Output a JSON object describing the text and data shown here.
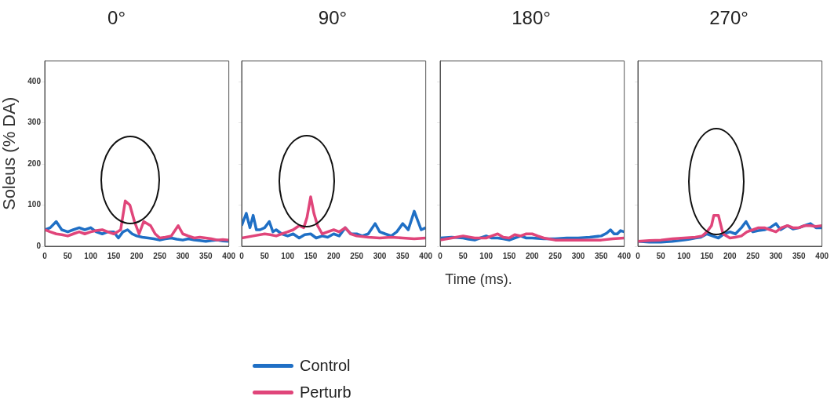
{
  "chart_data": [
    {
      "type": "line",
      "title": "0°",
      "ylabel": "Soleus (% DA)",
      "xlim": [
        0,
        400
      ],
      "xticks": [
        0,
        50,
        100,
        150,
        200,
        250,
        300,
        350,
        400
      ],
      "ylim": [
        0,
        450
      ],
      "yticks": [
        0,
        100,
        200,
        300,
        400
      ],
      "grid": false,
      "legend": "bottom",
      "marker": "none",
      "series": [
        {
          "name": "Control",
          "color": "#1f6fc5",
          "x": [
            0,
            12,
            25,
            37,
            50,
            62,
            75,
            87,
            100,
            112,
            125,
            137,
            150,
            160,
            170,
            180,
            190,
            200,
            212,
            225,
            237,
            250,
            262,
            275,
            287,
            300,
            312,
            325,
            337,
            350,
            362,
            375,
            387,
            400
          ],
          "values": [
            40,
            45,
            60,
            40,
            35,
            40,
            45,
            40,
            45,
            35,
            30,
            35,
            35,
            20,
            35,
            40,
            30,
            25,
            22,
            20,
            18,
            15,
            18,
            20,
            17,
            15,
            18,
            15,
            14,
            12,
            14,
            15,
            13,
            12
          ]
        },
        {
          "name": "Perturb",
          "color": "#e0457a",
          "x": [
            0,
            12,
            25,
            37,
            50,
            62,
            75,
            87,
            100,
            112,
            125,
            137,
            150,
            158,
            165,
            175,
            185,
            195,
            205,
            215,
            230,
            240,
            250,
            262,
            275,
            290,
            300,
            312,
            325,
            337,
            350,
            362,
            375,
            387,
            400
          ],
          "values": [
            40,
            35,
            30,
            28,
            25,
            30,
            35,
            30,
            35,
            38,
            40,
            35,
            30,
            35,
            40,
            110,
            100,
            60,
            30,
            60,
            50,
            30,
            20,
            22,
            25,
            50,
            30,
            25,
            20,
            22,
            20,
            18,
            15,
            16,
            15
          ]
        }
      ]
    },
    {
      "type": "line",
      "title": "90°",
      "xlim": [
        0,
        400
      ],
      "xticks": [
        0,
        50,
        100,
        150,
        200,
        250,
        300,
        350,
        400
      ],
      "ylim": [
        0,
        450
      ],
      "yticks": [
        0,
        100,
        200,
        300,
        400
      ],
      "grid": false,
      "tick_labels": "x",
      "marker": "none",
      "series": [
        {
          "color": "#1f6fc5",
          "x": [
            0,
            10,
            18,
            25,
            32,
            40,
            50,
            60,
            68,
            75,
            87,
            100,
            112,
            125,
            137,
            150,
            162,
            175,
            187,
            200,
            212,
            225,
            237,
            250,
            262,
            275,
            290,
            300,
            312,
            325,
            337,
            350,
            362,
            375,
            390,
            400
          ],
          "values": [
            50,
            80,
            45,
            75,
            40,
            40,
            45,
            60,
            35,
            40,
            30,
            25,
            30,
            20,
            28,
            30,
            20,
            25,
            22,
            30,
            25,
            45,
            30,
            30,
            25,
            30,
            55,
            35,
            30,
            25,
            35,
            55,
            40,
            85,
            40,
            45
          ]
        },
        {
          "color": "#e0457a",
          "x": [
            0,
            25,
            50,
            62,
            75,
            87,
            100,
            112,
            125,
            135,
            142,
            150,
            157,
            165,
            175,
            187,
            200,
            212,
            225,
            237,
            250,
            275,
            300,
            325,
            350,
            375,
            400
          ],
          "values": [
            20,
            25,
            30,
            28,
            25,
            30,
            35,
            40,
            50,
            45,
            70,
            120,
            80,
            50,
            30,
            35,
            40,
            35,
            45,
            30,
            25,
            22,
            20,
            22,
            20,
            18,
            20
          ]
        }
      ]
    },
    {
      "type": "line",
      "title": "180°",
      "xlabel": "Time (ms).",
      "xlim": [
        0,
        400
      ],
      "xticks": [
        0,
        50,
        100,
        150,
        200,
        250,
        300,
        350,
        400
      ],
      "ylim": [
        0,
        450
      ],
      "yticks": [
        0,
        100,
        200,
        300,
        400
      ],
      "grid": false,
      "tick_labels": "x",
      "marker": "none",
      "series": [
        {
          "color": "#1f6fc5",
          "x": [
            0,
            25,
            50,
            62,
            75,
            87,
            100,
            112,
            125,
            137,
            150,
            162,
            175,
            187,
            200,
            225,
            250,
            275,
            300,
            325,
            350,
            362,
            370,
            378,
            385,
            392,
            400
          ],
          "values": [
            20,
            22,
            20,
            17,
            15,
            20,
            25,
            20,
            20,
            18,
            15,
            20,
            25,
            20,
            20,
            18,
            18,
            20,
            20,
            22,
            25,
            32,
            40,
            30,
            30,
            38,
            35
          ]
        },
        {
          "color": "#e0457a",
          "x": [
            0,
            25,
            50,
            75,
            100,
            112,
            125,
            137,
            150,
            162,
            175,
            187,
            200,
            212,
            225,
            250,
            275,
            300,
            325,
            350,
            375,
            400
          ],
          "values": [
            15,
            20,
            25,
            20,
            20,
            25,
            30,
            22,
            20,
            28,
            25,
            30,
            30,
            25,
            20,
            15,
            15,
            15,
            15,
            15,
            18,
            20
          ]
        }
      ]
    },
    {
      "type": "line",
      "title": "270°",
      "xlim": [
        0,
        400
      ],
      "xticks": [
        0,
        50,
        100,
        150,
        200,
        250,
        300,
        350,
        400
      ],
      "ylim": [
        0,
        450
      ],
      "yticks": [
        0,
        100,
        200,
        300,
        400
      ],
      "grid": false,
      "tick_labels": "x",
      "marker": "none",
      "series": [
        {
          "color": "#1f6fc5",
          "x": [
            0,
            25,
            50,
            75,
            100,
            112,
            125,
            137,
            150,
            162,
            175,
            187,
            200,
            212,
            225,
            235,
            245,
            250,
            262,
            275,
            287,
            300,
            310,
            325,
            337,
            350,
            362,
            375,
            387,
            400
          ],
          "values": [
            12,
            10,
            10,
            12,
            15,
            17,
            20,
            22,
            30,
            25,
            20,
            30,
            35,
            30,
            45,
            60,
            40,
            35,
            38,
            40,
            45,
            55,
            40,
            50,
            42,
            45,
            50,
            55,
            45,
            45
          ]
        },
        {
          "color": "#e0457a",
          "x": [
            0,
            25,
            50,
            75,
            100,
            125,
            140,
            150,
            160,
            165,
            175,
            185,
            200,
            212,
            225,
            237,
            250,
            262,
            275,
            287,
            300,
            312,
            325,
            337,
            350,
            362,
            375,
            387,
            400
          ],
          "values": [
            12,
            14,
            15,
            18,
            20,
            22,
            25,
            35,
            50,
            75,
            75,
            30,
            20,
            22,
            25,
            35,
            40,
            45,
            45,
            40,
            35,
            45,
            50,
            45,
            45,
            50,
            50,
            48,
            50
          ]
        }
      ]
    }
  ]
}
